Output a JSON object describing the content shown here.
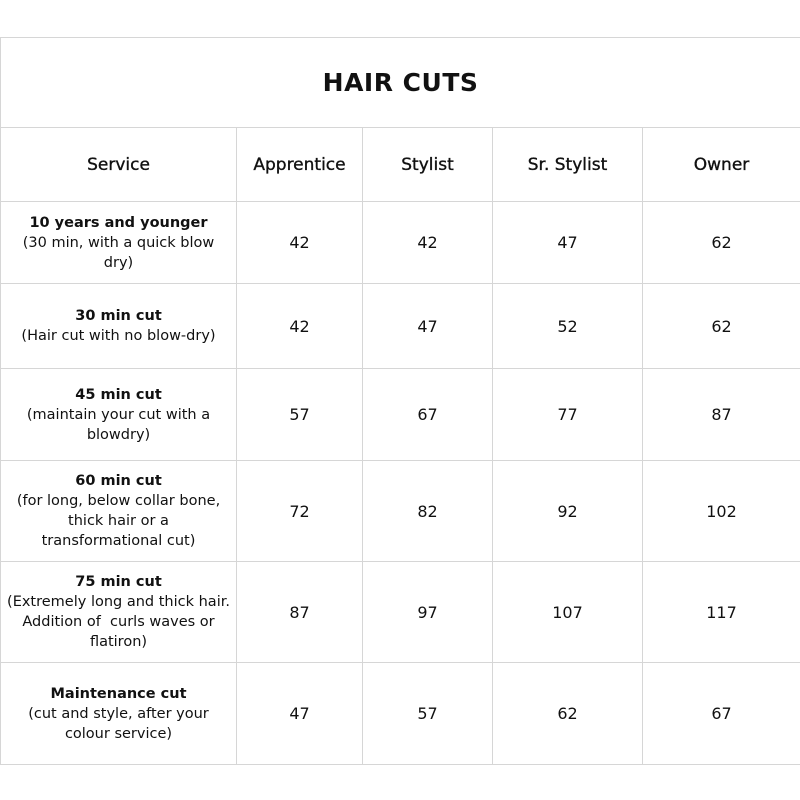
{
  "title": "HAIR CUTS",
  "columns": [
    "Service",
    "Apprentice",
    "Stylist",
    "Sr. Stylist",
    "Owner"
  ],
  "rows": [
    {
      "name": "10 years and younger",
      "desc": "(30 min, with a quick blow dry)",
      "prices": [
        "42",
        "42",
        "47",
        "62"
      ]
    },
    {
      "name": "30 min cut",
      "desc": "(Hair cut with no blow-dry)",
      "prices": [
        "42",
        "47",
        "52",
        "62"
      ]
    },
    {
      "name": "45 min cut",
      "desc": "(maintain your cut with a blowdry)",
      "prices": [
        "57",
        "67",
        "77",
        "87"
      ]
    },
    {
      "name": "60 min cut",
      "desc": "(for long, below collar bone, thick hair or a transformational cut)",
      "prices": [
        "72",
        "82",
        "92",
        "102"
      ]
    },
    {
      "name": "75 min cut",
      "desc": "(Extremely long and thick hair. Addition of  curls waves or flatiron)",
      "prices": [
        "87",
        "97",
        "107",
        "117"
      ]
    },
    {
      "name": "Maintenance cut",
      "desc": "(cut and style, after your colour service)",
      "prices": [
        "47",
        "57",
        "62",
        "67"
      ]
    }
  ]
}
